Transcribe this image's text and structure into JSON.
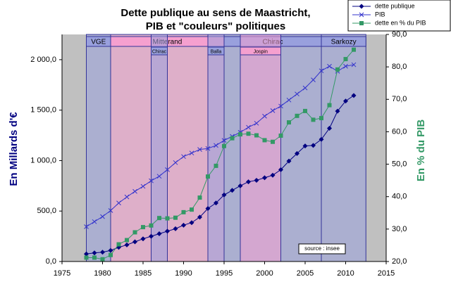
{
  "chart_data": {
    "type": "line",
    "title": [
      "Dette publique au sens de Maastricht,",
      "PIB et \"couleurs\" politiques"
    ],
    "ylabel": "En Millards d'€",
    "y2label": "En % du PIB",
    "annotation": "source : insee",
    "legend": "top-right",
    "grid": false,
    "xlim": [
      1975,
      2015
    ],
    "xticks": [
      1975,
      1980,
      1985,
      1990,
      1995,
      2000,
      2005,
      2010,
      2015
    ],
    "ylim": [
      0,
      2250
    ],
    "yticks": [
      {
        "value": 0,
        "label": "0,0"
      },
      {
        "value": 500,
        "label": "500,0"
      },
      {
        "value": 1000,
        "label": "1 000,0"
      },
      {
        "value": 1500,
        "label": "1 500,0"
      },
      {
        "value": 2000,
        "label": "2 000,0"
      }
    ],
    "y2lim": [
      20,
      90
    ],
    "y2ticks": [
      {
        "value": 20,
        "label": "20,0"
      },
      {
        "value": 30,
        "label": "30,0"
      },
      {
        "value": 40,
        "label": "40,0"
      },
      {
        "value": 50,
        "label": "50,0"
      },
      {
        "value": 60,
        "label": "60,0"
      },
      {
        "value": 70,
        "label": "70,0"
      },
      {
        "value": 80,
        "label": "80,0"
      },
      {
        "value": 90,
        "label": "90,0"
      }
    ],
    "presidencies": [
      {
        "label": "VGE",
        "start": 1978,
        "end": 1981,
        "color": "#99a0dd"
      },
      {
        "label": "Mitterand",
        "start": 1981,
        "end": 1995,
        "color": "#f5a0cf"
      },
      {
        "label": "Chirac",
        "start": 1995,
        "end": 2007,
        "color": "#99a0dd"
      },
      {
        "label": "Sarkozy",
        "start": 2007,
        "end": 2012.5,
        "color": "#99a0dd"
      }
    ],
    "governments": [
      {
        "label": "Chirac",
        "start": 1986,
        "end": 1988,
        "color": "#99a0dd"
      },
      {
        "label": "Balla",
        "start": 1993,
        "end": 1995,
        "color": "#99a0dd"
      },
      {
        "label": "Jospin",
        "start": 1997,
        "end": 2002,
        "color": "#f5a0cf"
      }
    ],
    "x": [
      1978,
      1979,
      1980,
      1981,
      1982,
      1983,
      1984,
      1985,
      1986,
      1987,
      1988,
      1989,
      1990,
      1991,
      1992,
      1993,
      1994,
      1995,
      1996,
      1997,
      1998,
      1999,
      2000,
      2001,
      2002,
      2003,
      2004,
      2005,
      2006,
      2007,
      2008,
      2009,
      2010,
      2011
    ],
    "series": [
      {
        "name": "dette publique",
        "color": "#000080",
        "marker": "diamond",
        "values": [
          75,
          85,
          92,
          110,
          140,
          165,
          195,
          225,
          250,
          275,
          300,
          325,
          360,
          385,
          440,
          525,
          580,
          660,
          705,
          750,
          790,
          805,
          830,
          855,
          910,
          995,
          1070,
          1145,
          1150,
          1210,
          1320,
          1490,
          1590,
          1645
        ]
      },
      {
        "name": "PIB",
        "color": "#3333cc",
        "marker": "x",
        "values": [
          345,
          395,
          445,
          505,
          580,
          640,
          695,
          745,
          800,
          845,
          910,
          980,
          1040,
          1075,
          1110,
          1120,
          1150,
          1200,
          1240,
          1280,
          1330,
          1370,
          1440,
          1495,
          1540,
          1600,
          1660,
          1720,
          1800,
          1890,
          1935,
          1885,
          1935,
          1950
        ]
      },
      {
        "name": "dette en % du PIB",
        "color": "#339966",
        "marker": "square",
        "axis": "y2",
        "values": [
          21.2,
          21.2,
          20.7,
          22.0,
          25.3,
          26.6,
          29.0,
          30.6,
          31.1,
          33.4,
          33.3,
          33.5,
          35.2,
          36.0,
          39.7,
          46.2,
          49.5,
          55.6,
          58.0,
          59.2,
          59.4,
          58.9,
          57.4,
          56.9,
          58.8,
          62.9,
          64.9,
          66.4,
          63.7,
          64.2,
          68.2,
          79.2,
          82.4,
          85.3
        ]
      }
    ]
  }
}
